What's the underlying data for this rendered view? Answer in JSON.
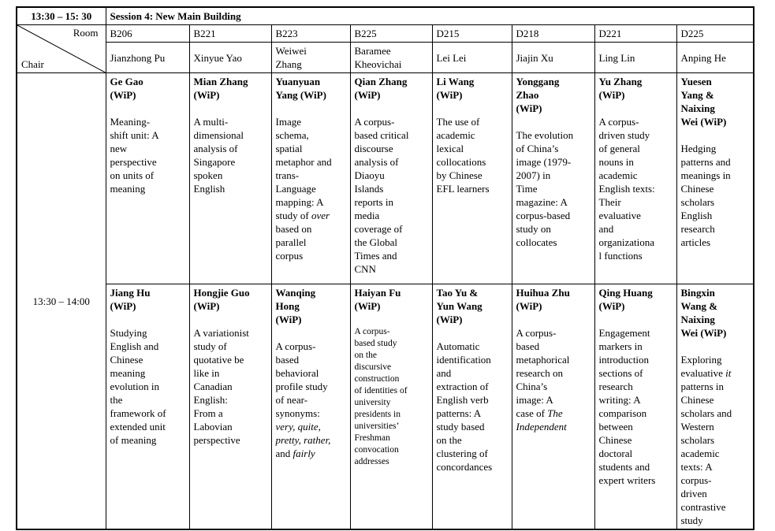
{
  "header": {
    "time_range": "13:30 – 15: 30",
    "session_title": "Session 4: New Main Building",
    "corner": {
      "room_label": "Room",
      "chair_label": "Chair"
    }
  },
  "columns": [
    {
      "room": "B206",
      "chair": "Jianzhong Pu"
    },
    {
      "room": "B221",
      "chair": "Xinyue Yao"
    },
    {
      "room": "B223",
      "chair": "Weiwei\nZhang"
    },
    {
      "room": "B225",
      "chair": "Baramee\nKheovichai"
    },
    {
      "room": "D215",
      "chair": "Lei Lei"
    },
    {
      "room": "D218",
      "chair": "Jiajin Xu"
    },
    {
      "room": "D221",
      "chair": "Ling Lin"
    },
    {
      "room": "D225",
      "chair": "Anping He"
    }
  ],
  "timeslot": {
    "label": "13:30 – 14:00"
  },
  "row1": [
    {
      "author": "Ge Gao\n(WiP)",
      "title": [
        {
          "t": "Meaning-\nshift unit: A\nnew\nperspective\non units of\nmeaning"
        }
      ]
    },
    {
      "author": "Mian Zhang\n(WiP)",
      "title": [
        {
          "t": "A multi-\ndimensional\nanalysis of\nSingapore\nspoken\nEnglish"
        }
      ]
    },
    {
      "author": "Yuanyuan\nYang (WiP)",
      "title": [
        {
          "t": "Image\nschema,\nspatial\nmetaphor and\ntrans-\nLanguage\nmapping: A\nstudy of "
        },
        {
          "t": "over",
          "i": true
        },
        {
          "t": "\nbased on\nparallel\ncorpus"
        }
      ]
    },
    {
      "author": "Qian Zhang\n(WiP)",
      "title": [
        {
          "t": "A corpus-\nbased critical\ndiscourse\nanalysis of\nDiaoyu\nIslands\nreports in\nmedia\ncoverage of\nthe Global\nTimes and\nCNN"
        }
      ]
    },
    {
      "author": "Li Wang\n(WiP)",
      "title": [
        {
          "t": "The use of\nacademic\nlexical\ncollocations\nby Chinese\nEFL learners"
        }
      ]
    },
    {
      "author": "Yonggang\nZhao\n(WiP)",
      "title": [
        {
          "t": "The evolution\nof China’s\nimage (1979-\n2007) in\nTime\nmagazine: A\ncorpus-based\nstudy on\ncollocates"
        }
      ]
    },
    {
      "author": "Yu Zhang\n(WiP)",
      "title": [
        {
          "t": "A corpus-\ndriven study\nof general\nnouns in\nacademic\nEnglish texts:\nTheir\nevaluative\nand\norganizationa\nl functions"
        }
      ]
    },
    {
      "author": "Yuesen\nYang &\nNaixing\nWei (WiP)",
      "title": [
        {
          "t": "Hedging\npatterns and\nmeanings in\nChinese\nscholars\nEnglish\nresearch\narticles"
        }
      ]
    }
  ],
  "row2": [
    {
      "author": "Jiang Hu\n(WiP)",
      "title": [
        {
          "t": "Studying\nEnglish and\nChinese\nmeaning\nevolution in\nthe\nframework of\nextended unit\nof meaning"
        }
      ]
    },
    {
      "author": "Hongjie Guo\n(WiP)",
      "title": [
        {
          "t": "A variationist\nstudy of\nquotative be\nlike in\nCanadian\nEnglish:\nFrom a\nLabovian\nperspective"
        }
      ]
    },
    {
      "author": "Wanqing\nHong\n(WiP)",
      "title": [
        {
          "t": "A corpus-\nbased\nbehavioral\nprofile study\nof near-\nsynonyms:\n"
        },
        {
          "t": "very, quite,\npretty, rather,",
          "i": true
        },
        {
          "t": "\nand "
        },
        {
          "t": "fairly",
          "i": true
        }
      ]
    },
    {
      "author": "Haiyan Fu\n(WiP)",
      "title": [
        {
          "t": "A corpus-\nbased study\non the\ndiscursive\nconstruction\nof identities of\nuniversity\npresidents in\nuniversities’\nFreshman\nconvocation\naddresses"
        }
      ]
    },
    {
      "author": "Tao Yu &\nYun Wang\n(WiP)",
      "title": [
        {
          "t": "Automatic\nidentification\nand\nextraction of\nEnglish verb\npatterns: A\nstudy based\non the\nclustering of\nconcordances"
        }
      ]
    },
    {
      "author": "Huihua Zhu\n(WiP)",
      "title": [
        {
          "t": "A corpus-\nbased\nmetaphorical\nresearch on\nChina’s\nimage: A\ncase of "
        },
        {
          "t": "The\nIndependent",
          "i": true
        }
      ]
    },
    {
      "author": "Qing Huang\n(WiP)",
      "title": [
        {
          "t": "Engagement\nmarkers in\nintroduction\nsections of\nresearch\nwriting: A\ncomparison\nbetween\nChinese\ndoctoral\nstudents and\nexpert writers"
        }
      ]
    },
    {
      "author": "Bingxin\nWang &\nNaixing\nWei (WiP)",
      "title": [
        {
          "t": "Exploring\nevaluative "
        },
        {
          "t": "it",
          "i": true
        },
        {
          "t": "\npatterns in\nChinese\nscholars and\nWestern\nscholars\nacademic\ntexts: A\ncorpus-\ndriven\ncontrastive\nstudy"
        }
      ]
    }
  ]
}
